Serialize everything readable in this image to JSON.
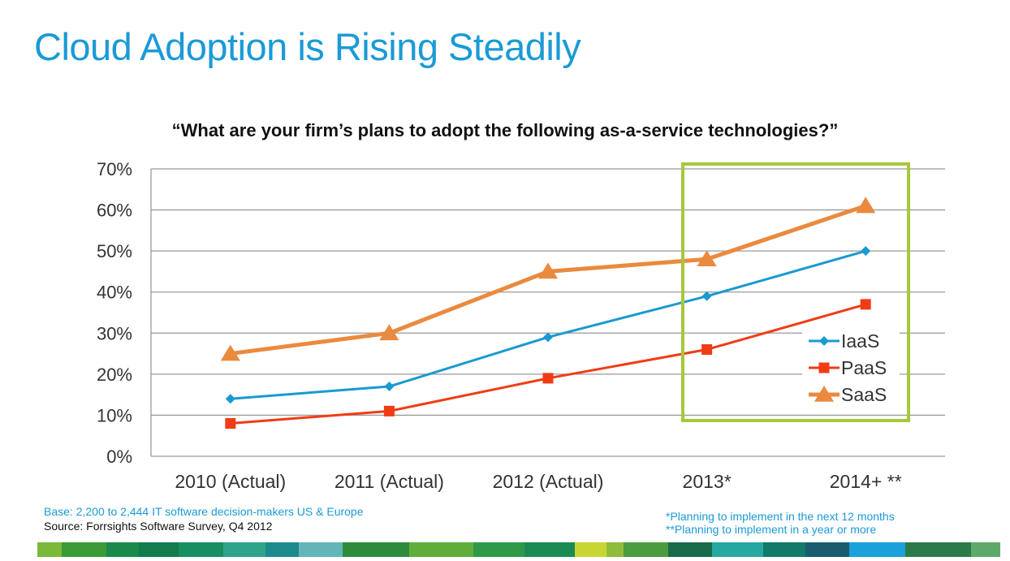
{
  "slide": {
    "title": "Cloud Adoption is Rising Steadily",
    "question": "“What are your firm’s plans to adopt the following as-a-service technologies?”"
  },
  "notes": {
    "base": "Base: 2,200 to 2,444 IT software decision-makers US &  Europe",
    "source": "Source: Forrsights Software Survey, Q4 2012",
    "footnote1": "*Planning to implement in the next 12 months",
    "footnote2": "**Planning to implement in a year or more"
  },
  "highlight_color": "#a6c83b",
  "footer_colors": [
    "#7ab93a",
    "#3b9a36",
    "#1a8a4a",
    "#127c4c",
    "#178f63",
    "#2ea58a",
    "#1b8a8c",
    "#62b6b9",
    "#2d8c3c",
    "#5fae3a",
    "#2e9a47",
    "#1a8c53",
    "#c8d634",
    "#8fbd3a",
    "#4a9c3e",
    "#1a6a4c",
    "#26a8a2",
    "#127a6a",
    "#1a5c6e",
    "#1aa0da",
    "#2b7a4a",
    "#5ea86a"
  ],
  "chart_data": {
    "type": "line",
    "categories": [
      "2010 (Actual)",
      "2011 (Actual)",
      "2012 (Actual)",
      "2013*",
      "2014+ **"
    ],
    "y_ticks": [
      "0%",
      "10%",
      "20%",
      "30%",
      "40%",
      "50%",
      "60%",
      "70%"
    ],
    "ylim": [
      0,
      70
    ],
    "grid": true,
    "legend_position": "bottom-right",
    "series": [
      {
        "name": "IaaS",
        "color": "#1a9ad0",
        "marker": "diamond",
        "values": [
          14,
          17,
          29,
          39,
          50
        ]
      },
      {
        "name": "PaaS",
        "color": "#f03c14",
        "marker": "square",
        "values": [
          8,
          11,
          19,
          26,
          37
        ]
      },
      {
        "name": "SaaS",
        "color": "#ea8a3e",
        "marker": "triangle",
        "values": [
          25,
          30,
          45,
          48,
          61
        ]
      }
    ]
  }
}
